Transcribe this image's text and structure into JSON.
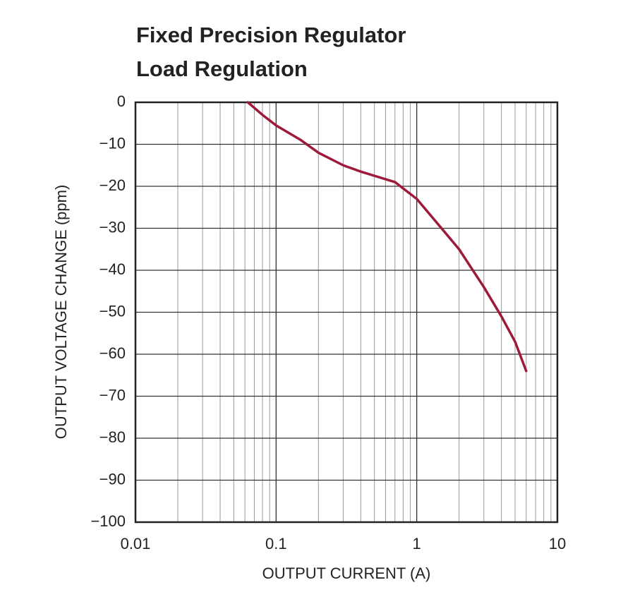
{
  "chart_data": {
    "type": "line",
    "title": [
      "Fixed Precision Regulator",
      "Load Regulation"
    ],
    "x_label": "OUTPUT CURRENT (A)",
    "y_label": "OUTPUT VOLTAGE CHANGE (ppm)",
    "x_scale": "log",
    "xlim": [
      0.01,
      10
    ],
    "xticks": [
      0.01,
      0.1,
      1,
      10
    ],
    "ylim": [
      -100,
      0
    ],
    "yticks": [
      0,
      {
        "value": -10,
        "label": "−10"
      },
      {
        "value": -20,
        "label": "−20"
      },
      {
        "value": -30,
        "label": "−30"
      },
      {
        "value": -40,
        "label": "−40"
      },
      {
        "value": -50,
        "label": "−50"
      },
      {
        "value": -60,
        "label": "−60"
      },
      {
        "value": -70,
        "label": "−70"
      },
      {
        "value": -80,
        "label": "−80"
      },
      {
        "value": -90,
        "label": "−90"
      },
      {
        "value": -100,
        "label": "−100"
      }
    ],
    "grid": true,
    "x": [
      0.063,
      0.08,
      0.1,
      0.15,
      0.2,
      0.3,
      0.4,
      0.5,
      0.7,
      0.8,
      1,
      1.5,
      2,
      3,
      4,
      5,
      6
    ],
    "series": [
      {
        "color": "#9e1a3b",
        "values": [
          0,
          -3,
          -5.5,
          -9,
          -12,
          -15,
          -16.5,
          -17.5,
          -19,
          -20.5,
          -23,
          -30,
          -35,
          -44,
          -51,
          -57,
          -64
        ]
      }
    ]
  }
}
